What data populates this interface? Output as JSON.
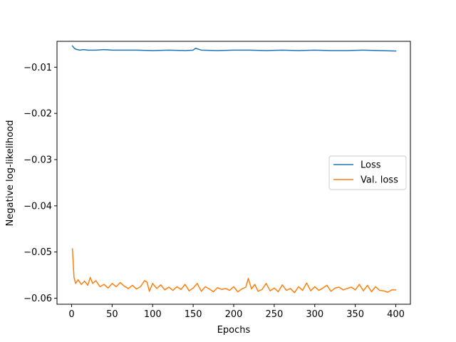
{
  "chart_data": {
    "type": "line",
    "title": "",
    "xlabel": "Epochs",
    "ylabel": "Negative log-likelihood",
    "xlim": [
      -18,
      418
    ],
    "ylim": [
      -0.0613,
      -0.0044
    ],
    "xticks": [
      0,
      50,
      100,
      150,
      200,
      250,
      300,
      350,
      400
    ],
    "xtick_labels": [
      "0",
      "50",
      "100",
      "150",
      "200",
      "250",
      "300",
      "350",
      "400"
    ],
    "yticks": [
      -0.01,
      -0.02,
      -0.03,
      -0.04,
      -0.05,
      -0.06
    ],
    "ytick_labels": [
      "−0.01",
      "−0.02",
      "−0.03",
      "−0.04",
      "−0.05",
      "−0.06"
    ],
    "grid": false,
    "legend_position": "center-right",
    "series": [
      {
        "name": "Loss",
        "color": "#1f77b4",
        "x": [
          1,
          4,
          7,
          10,
          15,
          20,
          30,
          40,
          50,
          60,
          80,
          100,
          120,
          140,
          150,
          153,
          160,
          180,
          200,
          220,
          240,
          260,
          280,
          300,
          320,
          340,
          360,
          380,
          400
        ],
        "y": [
          -0.0054,
          -0.006,
          -0.0062,
          -0.0063,
          -0.0062,
          -0.0063,
          -0.0063,
          -0.0062,
          -0.0063,
          -0.0063,
          -0.0063,
          -0.0064,
          -0.0063,
          -0.0064,
          -0.0063,
          -0.0059,
          -0.0063,
          -0.0064,
          -0.0063,
          -0.0063,
          -0.0064,
          -0.0063,
          -0.0064,
          -0.0063,
          -0.0064,
          -0.0064,
          -0.0063,
          -0.0064,
          -0.0065
        ]
      },
      {
        "name": "Val. loss",
        "color": "#ff7f0e",
        "x": [
          1,
          3,
          5,
          8,
          12,
          16,
          20,
          23,
          26,
          30,
          35,
          40,
          45,
          50,
          55,
          60,
          65,
          70,
          75,
          80,
          85,
          90,
          93,
          96,
          100,
          105,
          110,
          115,
          120,
          125,
          130,
          135,
          140,
          145,
          150,
          155,
          160,
          165,
          170,
          175,
          180,
          185,
          190,
          195,
          200,
          205,
          210,
          215,
          218,
          222,
          226,
          230,
          235,
          240,
          245,
          250,
          255,
          260,
          265,
          270,
          275,
          280,
          285,
          290,
          295,
          300,
          305,
          310,
          315,
          320,
          325,
          330,
          335,
          340,
          345,
          350,
          355,
          360,
          365,
          370,
          375,
          380,
          385,
          390,
          395,
          400
        ],
        "y": [
          -0.0493,
          -0.0555,
          -0.0568,
          -0.056,
          -0.057,
          -0.0563,
          -0.0572,
          -0.0555,
          -0.0568,
          -0.0562,
          -0.0575,
          -0.057,
          -0.0578,
          -0.0568,
          -0.0575,
          -0.0566,
          -0.0574,
          -0.0579,
          -0.0572,
          -0.058,
          -0.0575,
          -0.0562,
          -0.0565,
          -0.0585,
          -0.0568,
          -0.0579,
          -0.0571,
          -0.0582,
          -0.0576,
          -0.0583,
          -0.0575,
          -0.0581,
          -0.057,
          -0.0584,
          -0.0578,
          -0.0568,
          -0.0585,
          -0.0575,
          -0.058,
          -0.0586,
          -0.0577,
          -0.0581,
          -0.0579,
          -0.0583,
          -0.0575,
          -0.0586,
          -0.058,
          -0.0576,
          -0.0557,
          -0.058,
          -0.057,
          -0.0585,
          -0.0581,
          -0.0568,
          -0.0584,
          -0.0578,
          -0.0586,
          -0.0571,
          -0.0583,
          -0.0579,
          -0.0588,
          -0.0575,
          -0.0583,
          -0.0567,
          -0.0584,
          -0.0575,
          -0.0583,
          -0.0578,
          -0.0572,
          -0.0585,
          -0.0578,
          -0.0576,
          -0.0582,
          -0.0579,
          -0.0576,
          -0.0582,
          -0.057,
          -0.0584,
          -0.0572,
          -0.0586,
          -0.0575,
          -0.0583,
          -0.0584,
          -0.0587,
          -0.0582,
          -0.0582
        ]
      }
    ]
  }
}
